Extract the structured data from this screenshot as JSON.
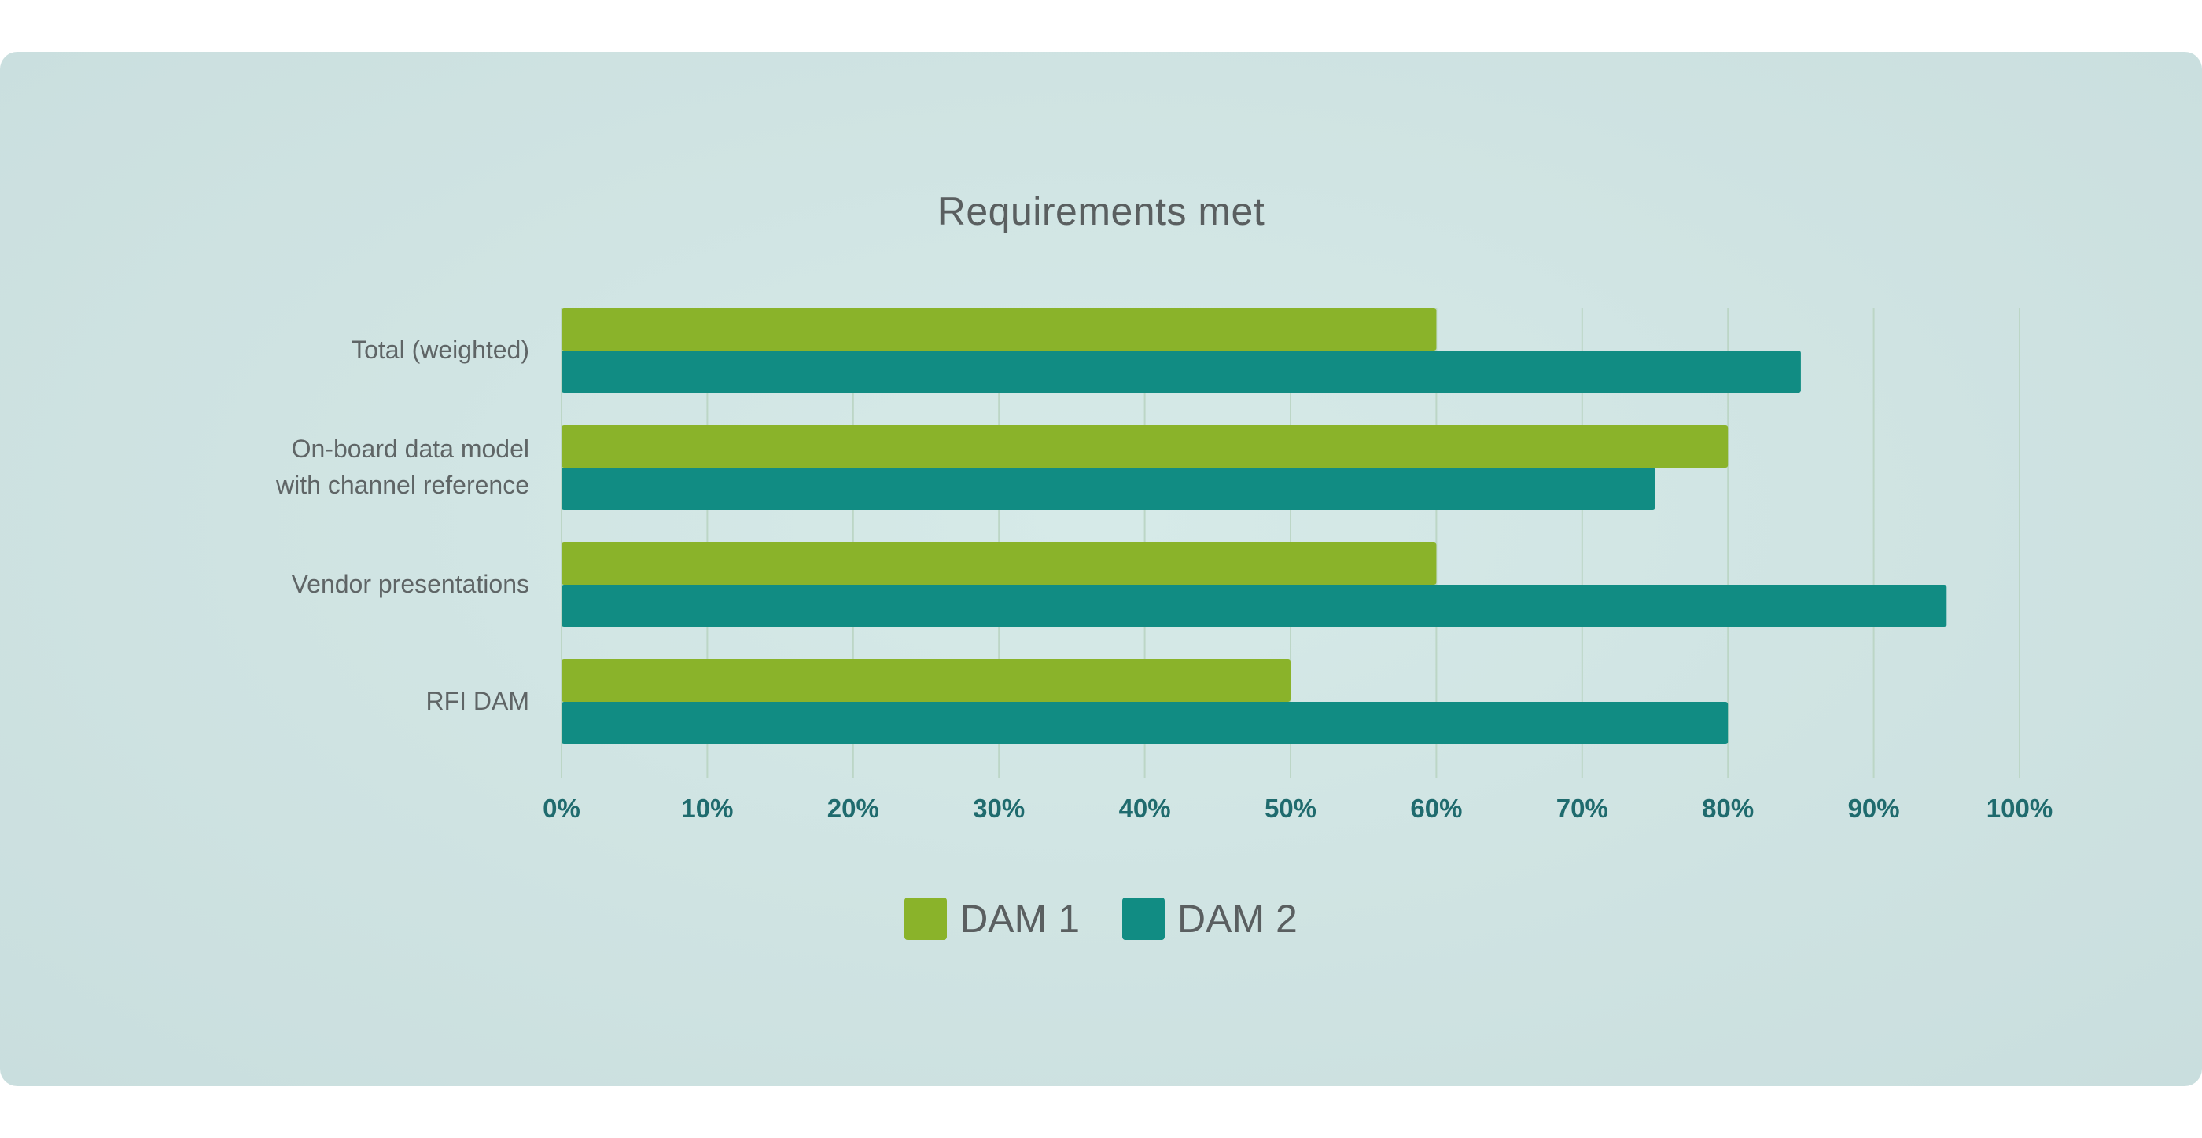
{
  "chart_data": {
    "type": "bar",
    "orientation": "horizontal",
    "title": "Requirements met",
    "categories": [
      "Total (weighted)",
      "On-board data model\nwith channel reference",
      "Vendor presentations",
      "RFI DAM"
    ],
    "series": [
      {
        "name": "DAM 1",
        "color": "#8ab32a",
        "values": [
          60,
          80,
          60,
          50
        ]
      },
      {
        "name": "DAM 2",
        "color": "#118c83",
        "values": [
          85,
          75,
          95,
          80
        ]
      }
    ],
    "xlim": [
      0,
      100
    ],
    "x_ticks": [
      "0%",
      "10%",
      "20%",
      "30%",
      "40%",
      "50%",
      "60%",
      "70%",
      "80%",
      "90%",
      "100%"
    ],
    "grid": true,
    "legend_position": "bottom-center"
  },
  "colors": {
    "background": "#d1e5e4",
    "gridline": "#bcd6c6",
    "tick_text": "#1f6b6e",
    "label_text": "#5f6566"
  }
}
